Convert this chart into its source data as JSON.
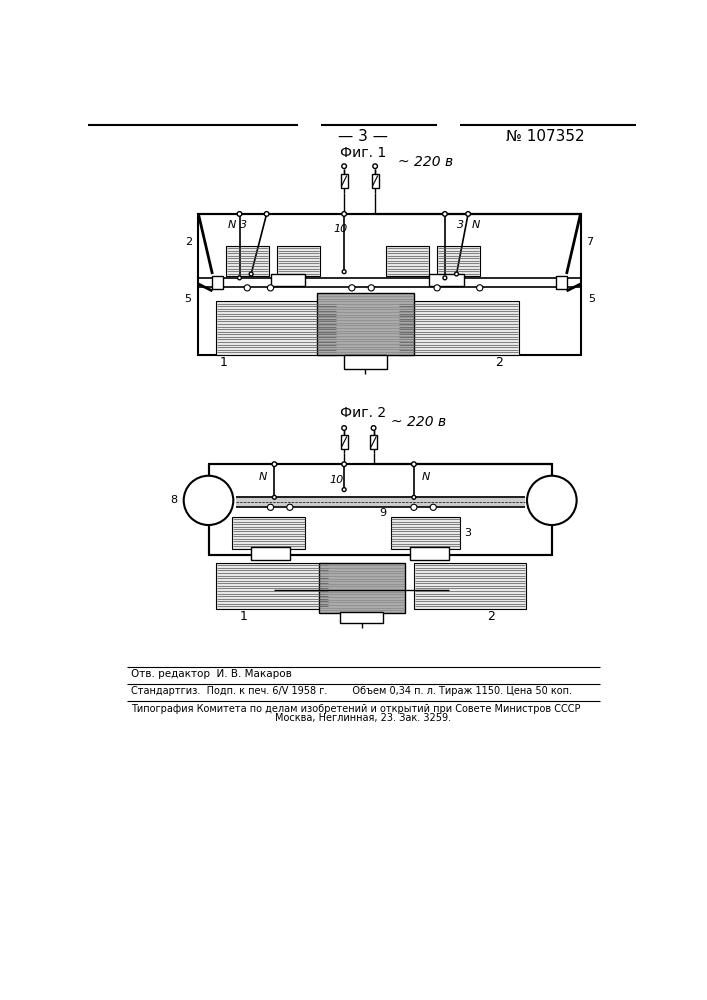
{
  "page_num": "— 3 —",
  "patent_num": "№ 107352",
  "fig1_label": "Фиг. 1",
  "fig2_label": "Фиг. 2",
  "voltage_label": "~ 220 в",
  "editor_line": "Отв. редактор  И. В. Макаров",
  "pub_line1": "Стандартгиз.  Подп. к печ. 6/V 1958 г.        Объем 0,34 п. л. Тираж 1150. Цена 50 коп.",
  "pub_line2": "Типография Комитета по делам изобретений и открытий при Совете Министров СССР",
  "pub_line3": "Москва, Неглинная, 23. Зак. 3259.",
  "bg_color": "#ffffff",
  "line_color": "#000000"
}
